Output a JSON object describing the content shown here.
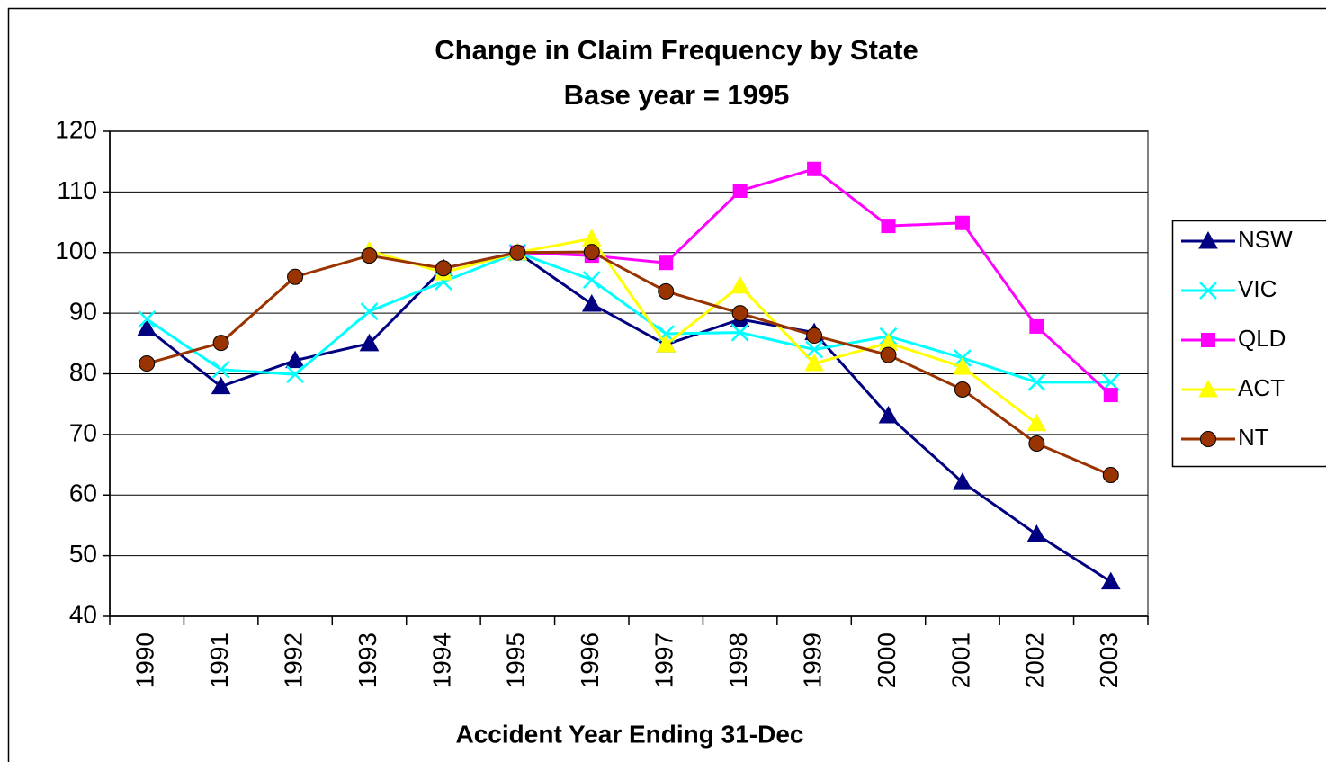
{
  "chart_data": {
    "type": "line",
    "title": "Change in Claim Frequency by State",
    "subtitle": "Base year = 1995",
    "x_label": "Accident Year Ending 31-Dec",
    "categories": [
      "1990",
      "1991",
      "1992",
      "1993",
      "1994",
      "1995",
      "1996",
      "1997",
      "1998",
      "1999",
      "2000",
      "2001",
      "2002",
      "2003"
    ],
    "ylim": [
      40,
      120
    ],
    "yticks": [
      40,
      50,
      60,
      70,
      80,
      90,
      100,
      110,
      120
    ],
    "grid": true,
    "legend": "right",
    "series": [
      {
        "name": "NSW",
        "color": "#000080",
        "marker": "triangle",
        "values": [
          87.5,
          77.9,
          82.2,
          85.0,
          97.4,
          100,
          91.5,
          84.8,
          89.0,
          86.8,
          73.1,
          62.1,
          53.5,
          45.7
        ]
      },
      {
        "name": "VIC",
        "color": "#00ffff",
        "marker": "x",
        "values": [
          89.0,
          80.7,
          79.9,
          90.3,
          95.2,
          100,
          95.5,
          86.6,
          86.8,
          84.0,
          86.2,
          82.6,
          78.6,
          78.6
        ]
      },
      {
        "name": "QLD",
        "color": "#ff00ff",
        "marker": "square",
        "values": [
          null,
          null,
          null,
          null,
          null,
          100,
          99.5,
          98.3,
          110.2,
          113.8,
          104.4,
          104.9,
          87.8,
          76.5
        ]
      },
      {
        "name": "ACT",
        "color": "#ffff00",
        "marker": "triangle",
        "values": [
          null,
          null,
          null,
          100.3,
          96.7,
          100,
          102.3,
          84.8,
          94.5,
          81.7,
          85.1,
          81.1,
          71.8,
          null
        ]
      },
      {
        "name": "NT",
        "color": "#993300",
        "marker": "circle",
        "values": [
          81.7,
          85.1,
          96.0,
          99.5,
          97.4,
          100,
          100.1,
          93.6,
          90.0,
          86.3,
          83.1,
          77.4,
          68.5,
          63.3
        ]
      }
    ]
  }
}
